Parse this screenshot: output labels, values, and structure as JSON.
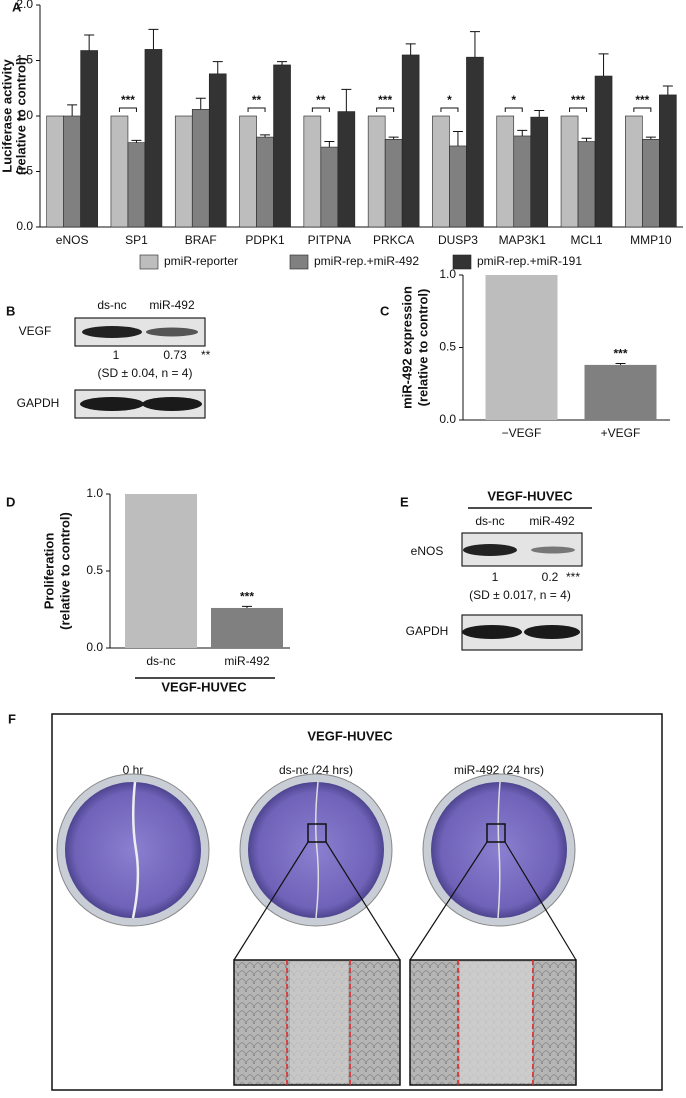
{
  "chart_data": [
    {
      "type": "grouped_bar",
      "panel_label": "A",
      "ylabel": [
        "Luciferase activity",
        "(relative to control)"
      ],
      "categories": [
        "eNOS",
        "SP1",
        "BRAF",
        "PDPK1",
        "PITPNA",
        "PRKCA",
        "DUSP3",
        "MAP3K1",
        "MCL1",
        "MMP10"
      ],
      "series": [
        {
          "name": "pmiR-reporter",
          "color": "#bdbdbd",
          "values": [
            1,
            1,
            1,
            1,
            1,
            1,
            1,
            1,
            1,
            1
          ]
        },
        {
          "name": "pmiR-rep.+miR-492",
          "color": "#808080",
          "values": [
            1.0,
            0.76,
            1.06,
            0.81,
            0.72,
            0.79,
            0.73,
            0.82,
            0.77,
            0.79
          ],
          "errors": [
            0.1,
            0.02,
            0.1,
            0.02,
            0.05,
            0.02,
            0.13,
            0.05,
            0.03,
            0.02
          ]
        },
        {
          "name": "pmiR-rep.+miR-191",
          "color": "#333333",
          "values": [
            1.59,
            1.6,
            1.38,
            1.46,
            1.04,
            1.55,
            1.53,
            0.99,
            1.36,
            1.19
          ],
          "errors": [
            0.14,
            0.18,
            0.11,
            0.03,
            0.2,
            0.1,
            0.23,
            0.06,
            0.2,
            0.08
          ]
        }
      ],
      "significance": [
        null,
        "***",
        null,
        "**",
        "**",
        "***",
        "*",
        "*",
        "***",
        "***"
      ],
      "ylim": [
        0,
        2
      ],
      "yticks": [
        {
          "value": 0,
          "label": "0.0"
        },
        {
          "value": 0.5,
          "label": "0.5"
        },
        {
          "value": 1,
          "label": "1.0"
        },
        {
          "value": 1.5,
          "label": "1.5"
        },
        {
          "value": 2,
          "label": "2.0"
        }
      ]
    },
    {
      "type": "bar",
      "panel_label": "C",
      "ylabel": [
        "miR-492 expression",
        "(relative to control)"
      ],
      "categories": [
        "−VEGF",
        "+VEGF"
      ],
      "values": [
        1,
        0.38
      ],
      "errors": [
        0,
        0.01
      ],
      "colors": [
        "#bdbdbd",
        "#808080"
      ],
      "significance": [
        null,
        "***"
      ],
      "ylim": [
        0,
        1
      ],
      "yticks": [
        {
          "value": 0,
          "label": "0.0"
        },
        {
          "value": 0.5,
          "label": "0.5"
        },
        {
          "value": 1,
          "label": "1.0"
        }
      ]
    },
    {
      "type": "bar",
      "panel_label": "D",
      "ylabel": [
        "Proliferation",
        "(relative to control)"
      ],
      "categories": [
        "ds-nc",
        "miR-492"
      ],
      "group_label": "VEGF-HUVEC",
      "values": [
        1,
        0.26
      ],
      "errors": [
        0,
        0.01
      ],
      "colors": [
        "#bdbdbd",
        "#808080"
      ],
      "significance": [
        null,
        "***"
      ],
      "ylim": [
        0,
        1
      ],
      "yticks": [
        {
          "value": 0,
          "label": "0.0"
        },
        {
          "value": 0.5,
          "label": "0.5"
        },
        {
          "value": 1,
          "label": "1.0"
        }
      ]
    }
  ],
  "panel_b": {
    "label": "B",
    "lanes": [
      "ds-nc",
      "miR-492"
    ],
    "target": "VEGF",
    "ratios": [
      1,
      0.73
    ],
    "significance": "**",
    "note": "(SD ± 0.04, n = 4)",
    "control": "GAPDH"
  },
  "panel_e": {
    "label": "E",
    "group": "VEGF-HUVEC",
    "lanes": [
      "ds-nc",
      "miR-492"
    ],
    "target": "eNOS",
    "ratios": [
      1,
      0.2
    ],
    "significance": "***",
    "note": "(SD ± 0.017, n = 4)",
    "control": "GAPDH"
  },
  "panel_f": {
    "label": "F",
    "title": "VEGF-HUVEC",
    "dishes": [
      "0 hr",
      "ds-nc (24 hrs)",
      "miR-492 (24 hrs)"
    ]
  }
}
